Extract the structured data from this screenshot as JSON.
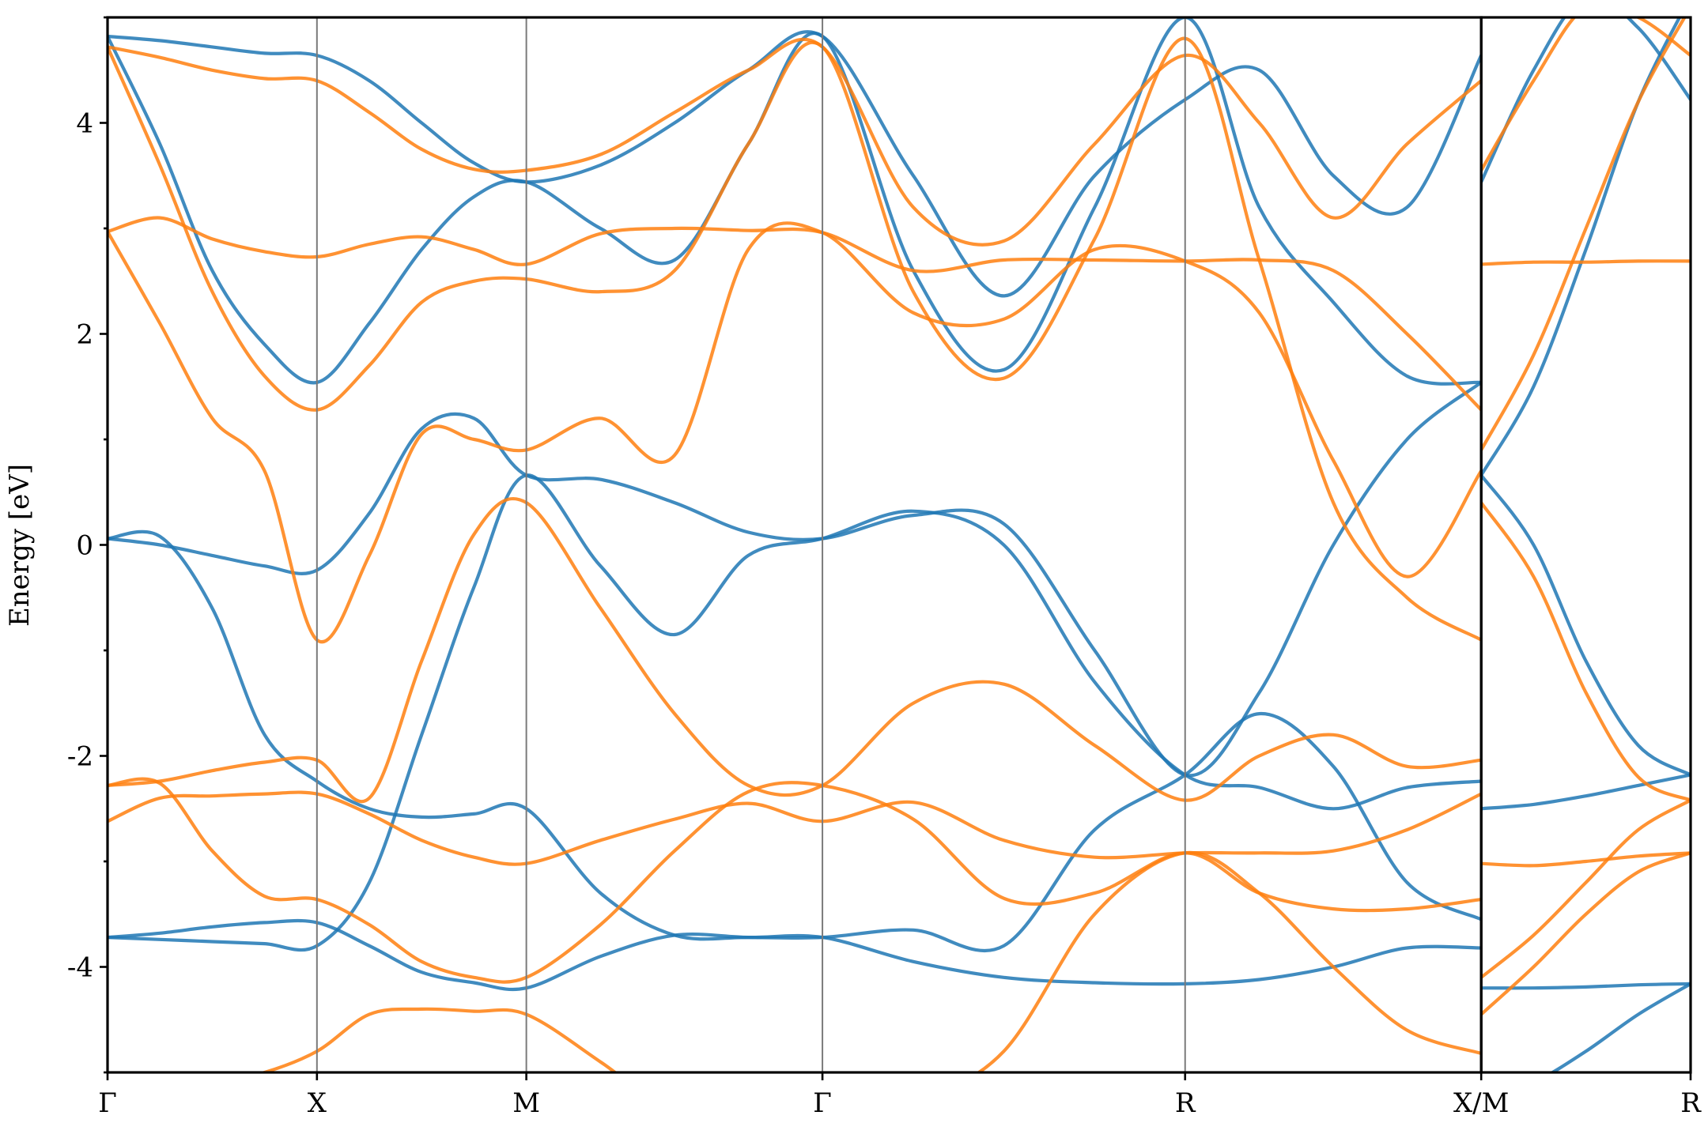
{
  "chart_data": {
    "type": "line",
    "title": "",
    "xlabel": "",
    "ylabel": "Energy [eV]",
    "ylim": [
      -5,
      5
    ],
    "y_ticks": [
      4,
      2,
      0,
      -2,
      -4
    ],
    "y_tick_labels": [
      "4",
      "2",
      "0",
      "-2",
      "-4"
    ],
    "grid": false,
    "legend": "none",
    "k_points": [
      {
        "label": "Γ",
        "k": 0.0
      },
      {
        "label": "X",
        "k": 0.5
      },
      {
        "label": "M",
        "k": 1.0
      },
      {
        "label": "Γ",
        "k": 1.707
      },
      {
        "label": "R",
        "k": 2.573
      },
      {
        "label": "X/M",
        "k": 3.28
      },
      {
        "label": "R",
        "k": 3.78
      }
    ],
    "panels": [
      {
        "k_start": 0.0,
        "k_end": 3.28
      },
      {
        "k_start": 3.28,
        "k_end": 3.78
      }
    ],
    "colors": {
      "spin_1": "#1f77b4",
      "spin_2": "#ff7f0e"
    },
    "series": [
      {
        "color_key": "spin_1",
        "k": [
          0.0,
          0.125,
          0.25,
          0.375,
          0.5,
          0.625,
          0.75,
          0.875,
          1.0,
          1.177,
          1.354,
          1.53,
          1.707,
          1.924,
          2.14,
          2.357,
          2.573,
          2.75,
          2.927,
          3.103,
          3.28
        ],
        "energy": [
          4.82,
          4.78,
          4.72,
          4.66,
          4.64,
          4.4,
          4.0,
          3.62,
          3.44,
          3.6,
          4.0,
          4.5,
          4.82,
          3.5,
          2.36,
          3.5,
          4.22,
          4.5,
          3.5,
          3.2,
          4.64
        ]
      },
      {
        "color_key": "spin_1",
        "k": [
          0.0,
          0.125,
          0.25,
          0.375,
          0.5,
          0.625,
          0.75,
          0.875,
          1.0,
          1.177,
          1.354,
          1.53,
          1.707,
          1.924,
          2.14,
          2.357,
          2.573,
          2.75,
          2.927,
          3.103,
          3.28
        ],
        "energy": [
          4.82,
          3.8,
          2.6,
          1.9,
          1.54,
          2.1,
          2.8,
          3.3,
          3.44,
          3.0,
          2.7,
          3.8,
          4.82,
          2.6,
          1.66,
          3.2,
          5.0,
          3.2,
          2.3,
          1.6,
          1.54
        ]
      },
      {
        "color_key": "spin_1",
        "k": [
          0.0,
          0.125,
          0.25,
          0.375,
          0.5,
          0.625,
          0.75,
          0.875,
          1.0,
          1.177,
          1.354,
          1.53,
          1.707,
          1.924,
          2.14,
          2.357,
          2.573,
          2.75,
          2.927,
          3.103,
          3.28
        ],
        "energy": [
          0.06,
          0.08,
          -0.6,
          -1.8,
          -2.24,
          -2.5,
          -2.58,
          -2.55,
          -2.5,
          -3.3,
          -3.7,
          -3.72,
          -3.72,
          -3.65,
          -3.8,
          -2.7,
          -2.18,
          -1.6,
          -2.1,
          -3.2,
          -3.55
        ]
      },
      {
        "color_key": "spin_1",
        "k": [
          0.0,
          0.125,
          0.25,
          0.375,
          0.5,
          0.625,
          0.75,
          0.875,
          1.0,
          1.177,
          1.354,
          1.53,
          1.707,
          1.924,
          2.14,
          2.357,
          2.573,
          2.75,
          2.927,
          3.103,
          3.28
        ],
        "energy": [
          0.06,
          0.0,
          -0.1,
          -0.2,
          -0.24,
          0.3,
          1.1,
          1.2,
          0.66,
          0.62,
          0.4,
          0.12,
          0.06,
          0.28,
          0.2,
          -1.0,
          -2.18,
          -1.4,
          0.0,
          1.0,
          1.54
        ]
      },
      {
        "color_key": "spin_1",
        "k": [
          0.0,
          0.125,
          0.25,
          0.375,
          0.5,
          0.625,
          0.75,
          0.875,
          1.0,
          1.177,
          1.354,
          1.53,
          1.707,
          1.924,
          2.14,
          2.357,
          2.573,
          2.75,
          2.927,
          3.103,
          3.28
        ],
        "energy": [
          -3.72,
          -3.68,
          -3.62,
          -3.58,
          -3.58,
          -3.8,
          -4.05,
          -4.15,
          -4.2,
          -3.9,
          -3.7,
          -3.72,
          -3.72,
          -3.95,
          -4.1,
          -4.15,
          -4.16,
          -4.12,
          -4.0,
          -3.82,
          -3.82
        ]
      },
      {
        "color_key": "spin_1",
        "k": [
          0.0,
          0.125,
          0.25,
          0.375,
          0.5,
          0.625,
          0.75,
          0.875,
          1.0,
          1.177,
          1.354,
          1.53,
          1.707,
          1.924,
          2.14,
          2.357,
          2.573,
          2.75,
          2.927,
          3.103,
          3.28
        ],
        "energy": [
          -3.72,
          -3.74,
          -3.76,
          -3.78,
          -3.8,
          -3.2,
          -1.8,
          -0.4,
          0.66,
          -0.2,
          -0.85,
          -0.1,
          0.06,
          0.32,
          0.0,
          -1.3,
          -2.18,
          -2.3,
          -2.5,
          -2.3,
          -2.24
        ]
      },
      {
        "color_key": "spin_2",
        "k": [
          0.0,
          0.125,
          0.25,
          0.375,
          0.5,
          0.625,
          0.75,
          0.875,
          1.0,
          1.177,
          1.354,
          1.53,
          1.707,
          1.924,
          2.14,
          2.357,
          2.573,
          2.75,
          2.927,
          3.103,
          3.28
        ],
        "energy": [
          4.72,
          4.62,
          4.5,
          4.42,
          4.4,
          4.1,
          3.75,
          3.56,
          3.55,
          3.7,
          4.1,
          4.5,
          4.72,
          3.2,
          2.88,
          3.8,
          4.64,
          4.0,
          3.1,
          3.8,
          4.4
        ]
      },
      {
        "color_key": "spin_2",
        "k": [
          0.0,
          0.125,
          0.25,
          0.375,
          0.5,
          0.625,
          0.75,
          0.875,
          1.0,
          1.177,
          1.354,
          1.53,
          1.707,
          1.924,
          2.14,
          2.357,
          2.573,
          2.75,
          2.927,
          3.103,
          3.28
        ],
        "energy": [
          2.97,
          3.1,
          2.9,
          2.78,
          2.73,
          2.85,
          2.92,
          2.8,
          2.66,
          2.95,
          3.0,
          2.98,
          2.96,
          2.6,
          2.7,
          2.7,
          2.69,
          2.7,
          2.6,
          2.0,
          1.28
        ]
      },
      {
        "color_key": "spin_2",
        "k": [
          0.0,
          0.125,
          0.25,
          0.375,
          0.5,
          0.625,
          0.75,
          0.875,
          1.0,
          1.177,
          1.354,
          1.53,
          1.707,
          1.924,
          2.14,
          2.357,
          2.573,
          2.75,
          2.927,
          3.103,
          3.28
        ],
        "energy": [
          4.72,
          3.6,
          2.4,
          1.6,
          1.28,
          1.7,
          2.3,
          2.5,
          2.52,
          2.4,
          2.6,
          3.8,
          4.72,
          2.4,
          1.58,
          2.9,
          4.8,
          2.7,
          0.4,
          -0.5,
          -0.9
        ]
      },
      {
        "color_key": "spin_2",
        "k": [
          0.0,
          0.125,
          0.25,
          0.375,
          0.5,
          0.625,
          0.75,
          0.875,
          1.0,
          1.177,
          1.354,
          1.53,
          1.707,
          1.924,
          2.14,
          2.357,
          2.573,
          2.75,
          2.927,
          3.103,
          3.28
        ],
        "energy": [
          2.97,
          2.1,
          1.2,
          0.7,
          -0.9,
          -0.1,
          1.05,
          1.0,
          0.9,
          1.2,
          0.85,
          2.8,
          2.96,
          2.2,
          2.14,
          2.8,
          2.69,
          2.2,
          0.8,
          -0.3,
          0.7
        ]
      },
      {
        "color_key": "spin_2",
        "k": [
          0.0,
          0.125,
          0.25,
          0.375,
          0.5,
          0.625,
          0.75,
          0.875,
          1.0,
          1.177,
          1.354,
          1.53,
          1.707,
          1.924,
          2.14,
          2.357,
          2.573,
          2.75,
          2.927,
          3.103,
          3.28
        ],
        "energy": [
          -2.28,
          -2.24,
          -2.14,
          -2.06,
          -2.04,
          -2.4,
          -1.1,
          0.1,
          0.4,
          -0.6,
          -1.6,
          -2.28,
          -2.28,
          -1.5,
          -1.32,
          -1.9,
          -2.42,
          -2.0,
          -1.8,
          -2.1,
          -2.04
        ]
      },
      {
        "color_key": "spin_2",
        "k": [
          0.0,
          0.125,
          0.25,
          0.375,
          0.5,
          0.625,
          0.75,
          0.875,
          1.0,
          1.177,
          1.354,
          1.53,
          1.707,
          1.924,
          2.14,
          2.357,
          2.573,
          2.75,
          2.927,
          3.103,
          3.28
        ],
        "energy": [
          -2.62,
          -2.4,
          -2.38,
          -2.36,
          -2.36,
          -2.55,
          -2.8,
          -2.96,
          -3.02,
          -2.8,
          -2.6,
          -2.45,
          -2.62,
          -2.44,
          -2.8,
          -2.96,
          -2.92,
          -2.92,
          -2.9,
          -2.7,
          -2.36
        ]
      },
      {
        "color_key": "spin_2",
        "k": [
          0.0,
          0.125,
          0.25,
          0.375,
          0.5,
          0.625,
          0.75,
          0.875,
          1.0,
          1.177,
          1.354,
          1.53,
          1.707,
          1.924,
          2.14,
          2.357,
          2.573,
          2.75,
          2.927,
          3.103,
          3.28
        ],
        "energy": [
          -2.28,
          -2.26,
          -2.9,
          -3.33,
          -3.36,
          -3.6,
          -3.95,
          -4.1,
          -4.1,
          -3.6,
          -2.9,
          -2.34,
          -2.28,
          -2.6,
          -3.35,
          -3.3,
          -2.92,
          -3.3,
          -3.45,
          -3.45,
          -3.36
        ]
      },
      {
        "color_key": "spin_2",
        "k": [
          0.0,
          0.125,
          0.25,
          0.375,
          0.5,
          0.625,
          0.75,
          0.875,
          1.0,
          1.177,
          1.354,
          1.53,
          1.707,
          1.924,
          2.14,
          2.357,
          2.573,
          2.75,
          2.927,
          3.103,
          3.28
        ],
        "energy": [
          -5.3,
          -5.2,
          -5.1,
          -5.0,
          -4.8,
          -4.45,
          -4.4,
          -4.42,
          -4.45,
          -4.9,
          -5.4,
          -5.6,
          -5.6,
          -5.3,
          -4.8,
          -3.5,
          -2.92,
          -3.3,
          -4.0,
          -4.6,
          -4.82
        ]
      }
    ],
    "series_panel2": [
      {
        "color_key": "spin_1",
        "k": [
          3.28,
          3.405,
          3.53,
          3.655,
          3.78
        ],
        "energy": [
          3.44,
          4.5,
          5.2,
          4.9,
          4.22
        ]
      },
      {
        "color_key": "spin_1",
        "k": [
          3.28,
          3.405,
          3.53,
          3.655,
          3.78
        ],
        "energy": [
          0.66,
          0.0,
          -1.1,
          -1.9,
          -2.18
        ]
      },
      {
        "color_key": "spin_1",
        "k": [
          3.28,
          3.405,
          3.53,
          3.655,
          3.78
        ],
        "energy": [
          0.66,
          1.5,
          2.8,
          4.2,
          5.2
        ]
      },
      {
        "color_key": "spin_1",
        "k": [
          3.28,
          3.405,
          3.53,
          3.655,
          3.78
        ],
        "energy": [
          -2.5,
          -2.46,
          -2.38,
          -2.28,
          -2.18
        ]
      },
      {
        "color_key": "spin_1",
        "k": [
          3.28,
          3.405,
          3.53,
          3.655,
          3.78
        ],
        "energy": [
          -4.2,
          -4.2,
          -4.19,
          -4.17,
          -4.16
        ]
      },
      {
        "color_key": "spin_1",
        "k": [
          3.28,
          3.405,
          3.53,
          3.655,
          3.78
        ],
        "energy": [
          -5.3,
          -5.1,
          -4.8,
          -4.45,
          -4.16
        ]
      },
      {
        "color_key": "spin_2",
        "k": [
          3.28,
          3.405,
          3.53,
          3.655,
          3.78
        ],
        "energy": [
          3.55,
          4.4,
          5.1,
          5.0,
          4.64
        ]
      },
      {
        "color_key": "spin_2",
        "k": [
          3.28,
          3.405,
          3.53,
          3.655,
          3.78
        ],
        "energy": [
          0.9,
          1.8,
          3.0,
          4.2,
          5.1
        ]
      },
      {
        "color_key": "spin_2",
        "k": [
          3.28,
          3.405,
          3.53,
          3.655,
          3.78
        ],
        "energy": [
          2.66,
          2.68,
          2.68,
          2.69,
          2.69
        ]
      },
      {
        "color_key": "spin_2",
        "k": [
          3.28,
          3.405,
          3.53,
          3.655,
          3.78
        ],
        "energy": [
          0.4,
          -0.3,
          -1.4,
          -2.2,
          -2.42
        ]
      },
      {
        "color_key": "spin_2",
        "k": [
          3.28,
          3.405,
          3.53,
          3.655,
          3.78
        ],
        "energy": [
          -3.02,
          -3.04,
          -3.0,
          -2.95,
          -2.92
        ]
      },
      {
        "color_key": "spin_2",
        "k": [
          3.28,
          3.405,
          3.53,
          3.655,
          3.78
        ],
        "energy": [
          -4.1,
          -3.7,
          -3.2,
          -2.7,
          -2.42
        ]
      },
      {
        "color_key": "spin_2",
        "k": [
          3.28,
          3.405,
          3.53,
          3.655,
          3.78
        ],
        "energy": [
          -4.45,
          -4.0,
          -3.5,
          -3.1,
          -2.92
        ]
      }
    ]
  }
}
